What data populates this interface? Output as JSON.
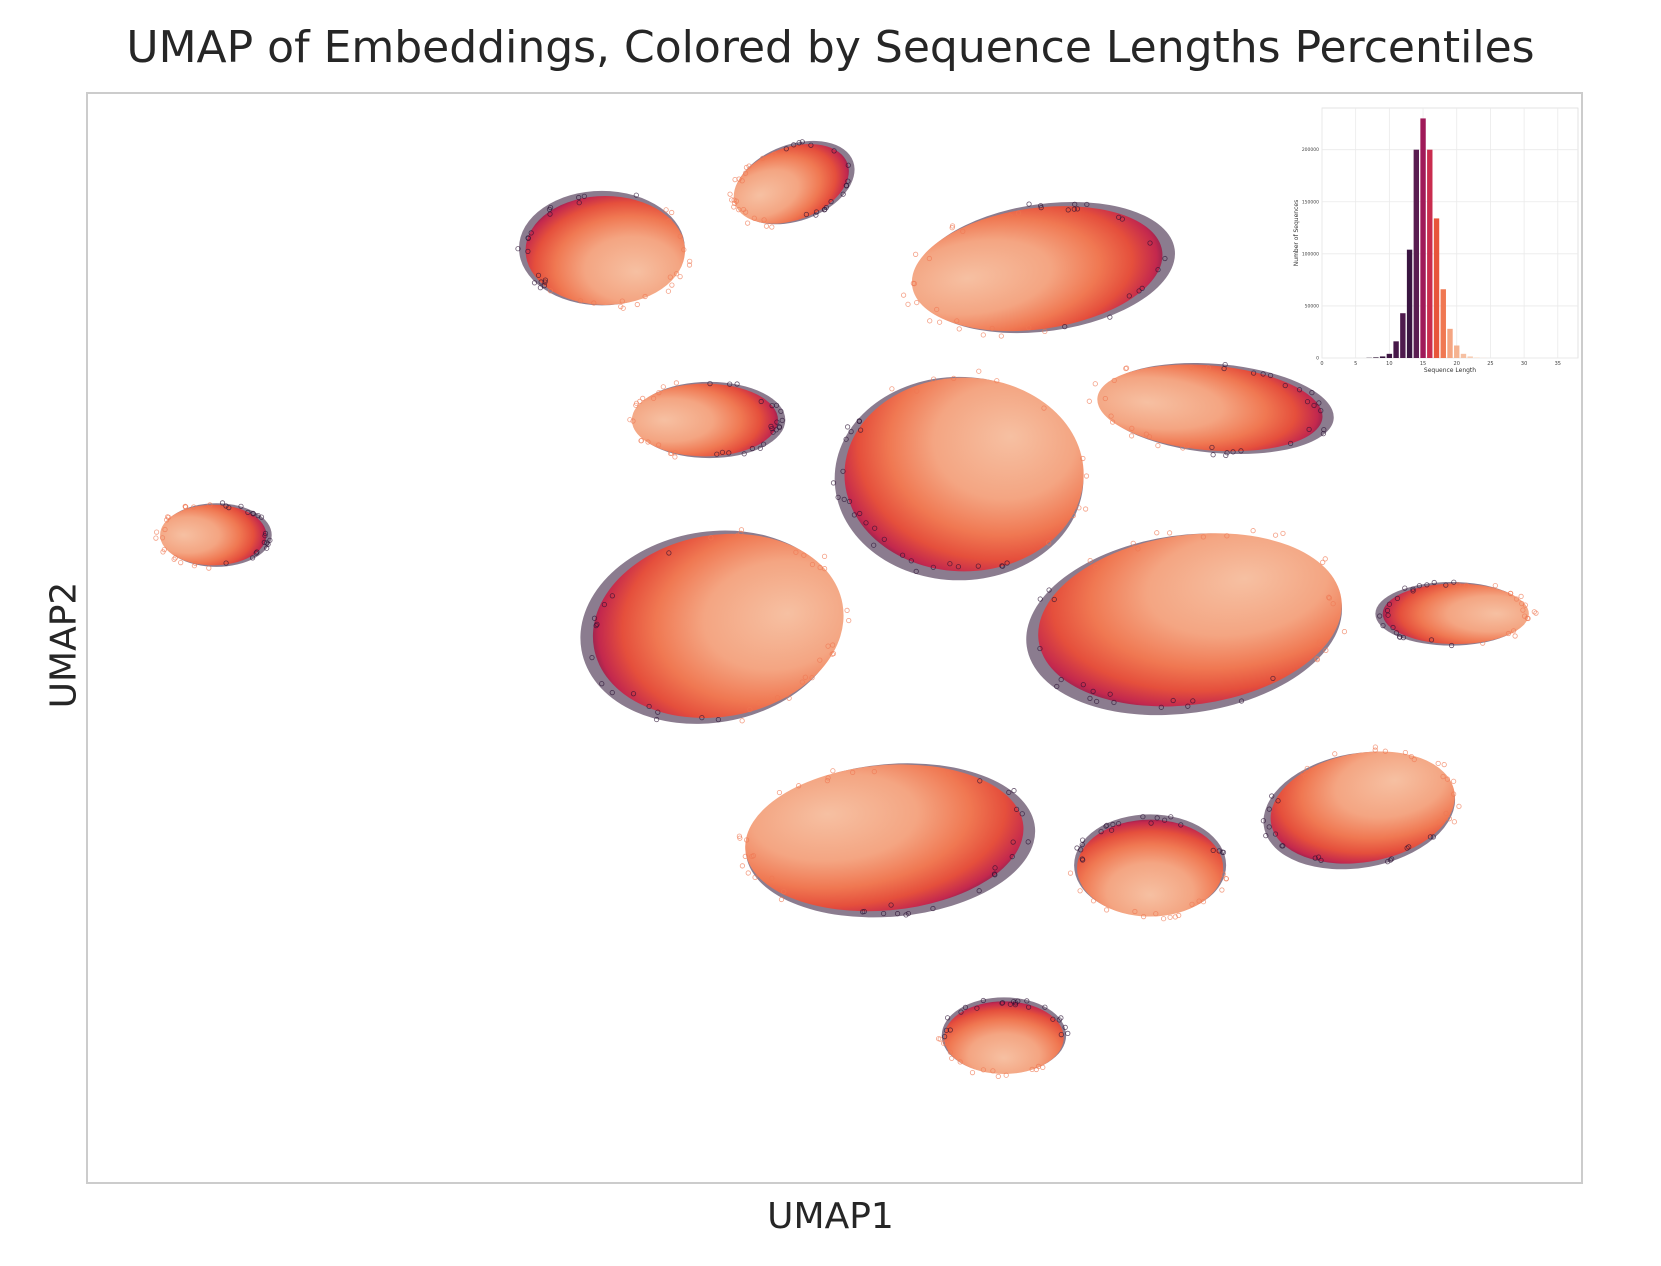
{
  "chart_data": [
    {
      "type": "scatter",
      "title": "UMAP of Embeddings, Colored by Sequence Lengths Percentiles",
      "xlabel": "UMAP1",
      "ylabel": "UMAP2",
      "ticks_shown": false,
      "grid": false,
      "colormap": "rocket",
      "colormap_stops": [
        "#2b1133",
        "#5b1e51",
        "#8a1d5a",
        "#c3284e",
        "#e54f3c",
        "#f07852",
        "#f4a582",
        "#f6c0a2"
      ],
      "clusters": [
        {
          "cx": -5.2,
          "cy": 3.9,
          "rx": 1.2,
          "ry": 0.9,
          "rotation": 0,
          "dark_side": "upper-left"
        },
        {
          "cx": -2.4,
          "cy": 5.0,
          "rx": 0.9,
          "ry": 0.6,
          "rotation": -20,
          "dark_side": "right"
        },
        {
          "cx": 1.3,
          "cy": 3.6,
          "rx": 1.9,
          "ry": 1.0,
          "rotation": -8,
          "dark_side": "right"
        },
        {
          "cx": -3.7,
          "cy": 1.1,
          "rx": 1.1,
          "ry": 0.6,
          "rotation": 0,
          "dark_side": "right"
        },
        {
          "cx": 3.9,
          "cy": 1.3,
          "rx": 1.7,
          "ry": 0.7,
          "rotation": 5,
          "dark_side": "right"
        },
        {
          "cx": 0.2,
          "cy": 0.2,
          "rx": 1.8,
          "ry": 1.6,
          "rotation": 0,
          "dark_side": "lower-left"
        },
        {
          "cx": -11.1,
          "cy": -0.8,
          "rx": 0.8,
          "ry": 0.5,
          "rotation": 0,
          "dark_side": "right"
        },
        {
          "cx": -3.5,
          "cy": -2.3,
          "rx": 1.9,
          "ry": 1.5,
          "rotation": -10,
          "dark_side": "left"
        },
        {
          "cx": 3.6,
          "cy": -2.2,
          "rx": 2.3,
          "ry": 1.4,
          "rotation": -8,
          "dark_side": "lower-left"
        },
        {
          "cx": 7.6,
          "cy": -2.1,
          "rx": 1.1,
          "ry": 0.5,
          "rotation": 0,
          "dark_side": "left"
        },
        {
          "cx": -1.0,
          "cy": -5.8,
          "rx": 2.1,
          "ry": 1.2,
          "rotation": -5,
          "dark_side": "lower-right"
        },
        {
          "cx": 3.0,
          "cy": -6.3,
          "rx": 1.1,
          "ry": 0.8,
          "rotation": 0,
          "dark_side": "top"
        },
        {
          "cx": 6.2,
          "cy": -5.3,
          "rx": 1.4,
          "ry": 0.9,
          "rotation": -10,
          "dark_side": "lower-left"
        },
        {
          "cx": 0.8,
          "cy": -9.1,
          "rx": 0.9,
          "ry": 0.6,
          "rotation": 0,
          "dark_side": "top"
        }
      ],
      "xlim": [
        -13,
        9.5
      ],
      "ylim": [
        -11.5,
        6.5
      ]
    },
    {
      "type": "bar",
      "title": "",
      "xlabel": "Sequence Length",
      "ylabel": "Number of Sequences",
      "x": [
        7,
        8,
        9,
        10,
        11,
        12,
        13,
        14,
        15,
        16,
        17,
        18,
        19,
        20,
        21,
        22,
        23,
        24
      ],
      "values": [
        200,
        600,
        1500,
        4000,
        16000,
        43000,
        104000,
        200000,
        230000,
        200000,
        134000,
        66000,
        28000,
        12000,
        4000,
        1500,
        500,
        200
      ],
      "colors": [
        "#1f0c27",
        "#2b1133",
        "#35133d",
        "#3d1542",
        "#471849",
        "#4e1a4d",
        "#3a1541",
        "#5a1d51",
        "#a01a59",
        "#c92c4e",
        "#e8553a",
        "#f07852",
        "#f4a582",
        "#f5b391",
        "#f6c0a2",
        "#f7cdb4",
        "#f8d9c4",
        "#f9e3d2"
      ],
      "xticks": [
        "0",
        "5",
        "10",
        "15",
        "20",
        "25",
        "30",
        "35"
      ],
      "yticks": [
        "0",
        "50000",
        "100000",
        "150000",
        "200000"
      ],
      "xlim": [
        0,
        38
      ],
      "ylim": [
        0,
        240000
      ],
      "grid": true
    }
  ]
}
